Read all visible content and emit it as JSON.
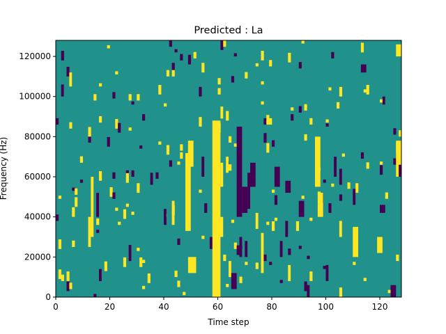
{
  "chart_data": {
    "type": "heatmap",
    "title": "Predicted : La",
    "xlabel": "Time step",
    "ylabel": "Frequency (Hz)",
    "xlim": [
      0,
      128
    ],
    "ylim": [
      0,
      128000
    ],
    "x_ticks": [
      0,
      20,
      40,
      60,
      80,
      100,
      120
    ],
    "y_ticks": [
      0,
      20000,
      40000,
      60000,
      80000,
      100000,
      120000
    ],
    "x_tick_labels": [
      "0",
      "20",
      "40",
      "60",
      "80",
      "100",
      "120"
    ],
    "y_tick_labels": [
      "0",
      "20000",
      "40000",
      "60000",
      "80000",
      "100000",
      "120000"
    ],
    "colormap": "viridis",
    "colors": {
      "low": "#440154",
      "mid": "#21918c",
      "high": "#fde725"
    },
    "background_value": "mid",
    "grid": false,
    "high_regions": [
      {
        "x": [
          48,
          50
        ],
        "y": [
          33000,
          68000
        ]
      },
      {
        "x": [
          49,
          51
        ],
        "y": [
          65000,
          78000
        ]
      },
      {
        "x": [
          58,
          61
        ],
        "y": [
          0,
          88000
        ]
      },
      {
        "x": [
          61,
          62
        ],
        "y": [
          55000,
          67000
        ]
      },
      {
        "x": [
          60,
          62
        ],
        "y": [
          30000,
          40000
        ]
      },
      {
        "x": [
          61,
          62
        ],
        "y": [
          89000,
          95000
        ]
      },
      {
        "x": [
          96,
          98
        ],
        "y": [
          55000,
          80000
        ]
      },
      {
        "x": [
          97,
          99
        ],
        "y": [
          40000,
          52000
        ]
      },
      {
        "x": [
          13,
          14
        ],
        "y": [
          30000,
          60000
        ]
      },
      {
        "x": [
          12,
          13
        ],
        "y": [
          25000,
          40000
        ]
      },
      {
        "x": [
          74,
          75
        ],
        "y": [
          34000,
          42000
        ]
      },
      {
        "x": [
          76,
          77
        ],
        "y": [
          12000,
          32000
        ]
      },
      {
        "x": [
          110,
          112
        ],
        "y": [
          20000,
          35000
        ]
      },
      {
        "x": [
          119,
          121
        ],
        "y": [
          22000,
          30000
        ]
      },
      {
        "x": [
          126,
          128
        ],
        "y": [
          60000,
          78000
        ]
      },
      {
        "x": [
          126,
          128
        ],
        "y": [
          120000,
          126000
        ]
      },
      {
        "x": [
          49,
          52
        ],
        "y": [
          12000,
          20000
        ]
      },
      {
        "x": [
          64,
          65
        ],
        "y": [
          10000,
          18000
        ]
      },
      {
        "x": [
          63,
          64
        ],
        "y": [
          62000,
          70000
        ]
      },
      {
        "x": [
          86,
          87
        ],
        "y": [
          8000,
          16000
        ]
      },
      {
        "x": [
          105,
          106
        ],
        "y": [
          30000,
          38000
        ]
      },
      {
        "x": [
          5,
          6
        ],
        "y": [
          105000,
          112000
        ]
      },
      {
        "x": [
          43,
          44
        ],
        "y": [
          36000,
          48000
        ]
      }
    ],
    "low_regions": [
      {
        "x": [
          67,
          69
        ],
        "y": [
          40000,
          85000
        ]
      },
      {
        "x": [
          69,
          71
        ],
        "y": [
          42000,
          55000
        ]
      },
      {
        "x": [
          71,
          72
        ],
        "y": [
          44000,
          62000
        ]
      },
      {
        "x": [
          72,
          74
        ],
        "y": [
          55000,
          67000
        ]
      },
      {
        "x": [
          68,
          69
        ],
        "y": [
          20000,
          30000
        ]
      },
      {
        "x": [
          65,
          67
        ],
        "y": [
          4000,
          12000
        ]
      },
      {
        "x": [
          70,
          71
        ],
        "y": [
          20000,
          28000
        ]
      },
      {
        "x": [
          113,
          115
        ],
        "y": [
          112000,
          116000
        ]
      },
      {
        "x": [
          90,
          92
        ],
        "y": [
          40000,
          48000
        ]
      },
      {
        "x": [
          103,
          104
        ],
        "y": [
          60000,
          70000
        ]
      },
      {
        "x": [
          105,
          106
        ],
        "y": [
          56000,
          64000
        ]
      },
      {
        "x": [
          85,
          86
        ],
        "y": [
          30000,
          38000
        ]
      },
      {
        "x": [
          81,
          83
        ],
        "y": [
          55000,
          65000
        ]
      },
      {
        "x": [
          83,
          84
        ],
        "y": [
          20000,
          28000
        ]
      },
      {
        "x": [
          100,
          101
        ],
        "y": [
          8000,
          16000
        ]
      },
      {
        "x": [
          124,
          126
        ],
        "y": [
          0,
          6000
        ]
      },
      {
        "x": [
          127,
          128
        ],
        "y": [
          60000,
          66000
        ]
      },
      {
        "x": [
          54,
          55
        ],
        "y": [
          60000,
          70000
        ]
      },
      {
        "x": [
          15,
          16
        ],
        "y": [
          40000,
          52000
        ]
      },
      {
        "x": [
          16,
          17
        ],
        "y": [
          8000,
          14000
        ]
      },
      {
        "x": [
          2,
          3
        ],
        "y": [
          100000,
          106000
        ]
      },
      {
        "x": [
          93,
          94
        ],
        "y": [
          0,
          6000
        ]
      },
      {
        "x": [
          110,
          111
        ],
        "y": [
          46000,
          54000
        ]
      },
      {
        "x": [
          120,
          122
        ],
        "y": [
          42000,
          46000
        ]
      },
      {
        "x": [
          121,
          122
        ],
        "y": [
          96000,
          100000
        ]
      },
      {
        "x": [
          85,
          87
        ],
        "y": [
          52000,
          58000
        ]
      },
      {
        "x": [
          27,
          28
        ],
        "y": [
          18000,
          26000
        ]
      },
      {
        "x": [
          35,
          36
        ],
        "y": [
          56000,
          62000
        ]
      },
      {
        "x": [
          57,
          58
        ],
        "y": [
          24000,
          30000
        ]
      },
      {
        "x": [
          40,
          41
        ],
        "y": [
          36000,
          44000
        ]
      }
    ],
    "sparse_cells_per_row": 24,
    "sparse_seed": 7
  }
}
